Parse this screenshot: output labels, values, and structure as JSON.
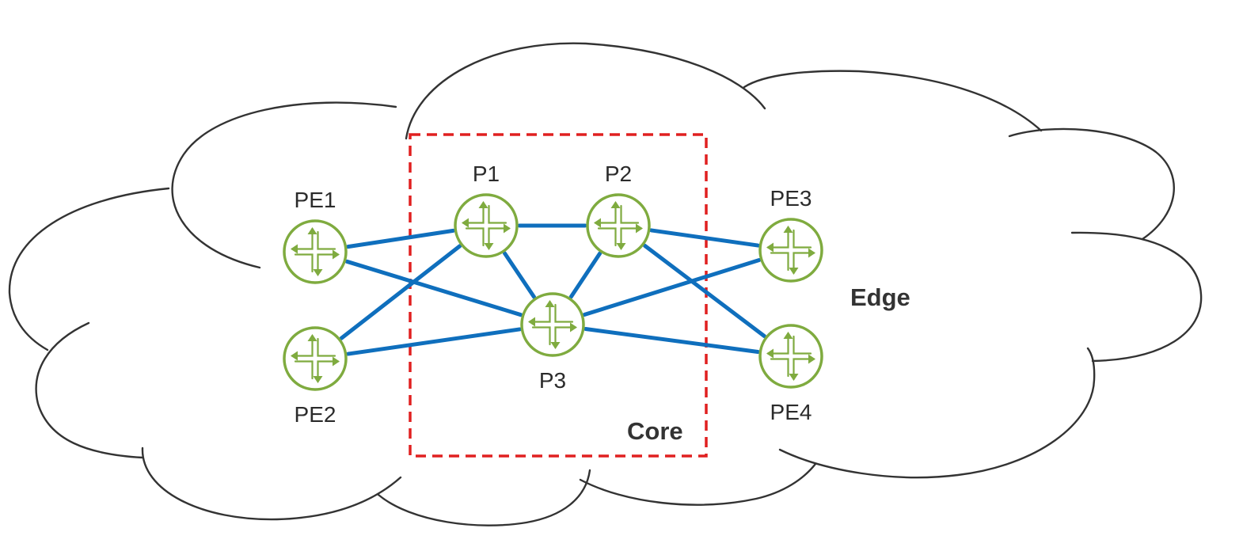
{
  "zones": {
    "edge_label": "Edge",
    "core_label": "Core"
  },
  "colors": {
    "link": "#0f6fbd",
    "router": "#7fab3f",
    "core_border": "#e02020",
    "cloud_outline": "#333333"
  },
  "icon": "router-icon",
  "nodes": [
    {
      "id": "PE1",
      "label": "PE1",
      "label_pos": "above"
    },
    {
      "id": "PE2",
      "label": "PE2",
      "label_pos": "below"
    },
    {
      "id": "P1",
      "label": "P1",
      "label_pos": "above"
    },
    {
      "id": "P2",
      "label": "P2",
      "label_pos": "above"
    },
    {
      "id": "P3",
      "label": "P3",
      "label_pos": "below"
    },
    {
      "id": "PE3",
      "label": "PE3",
      "label_pos": "above"
    },
    {
      "id": "PE4",
      "label": "PE4",
      "label_pos": "below"
    }
  ],
  "links": [
    [
      "PE1",
      "P1"
    ],
    [
      "PE1",
      "P3"
    ],
    [
      "PE2",
      "P1"
    ],
    [
      "PE2",
      "P3"
    ],
    [
      "P1",
      "P2"
    ],
    [
      "P1",
      "P3"
    ],
    [
      "P2",
      "P3"
    ],
    [
      "P2",
      "PE3"
    ],
    [
      "P2",
      "PE4"
    ],
    [
      "P3",
      "PE3"
    ],
    [
      "P3",
      "PE4"
    ]
  ]
}
